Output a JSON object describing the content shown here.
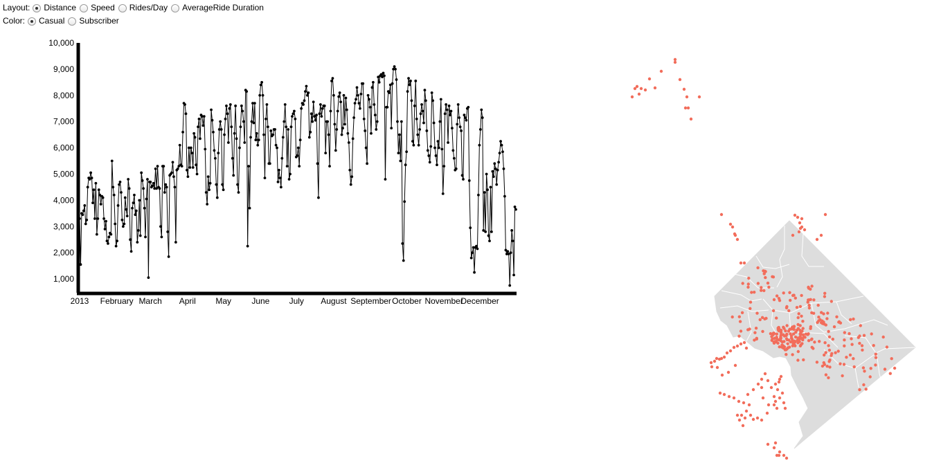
{
  "controls": {
    "layout": {
      "label": "Layout:",
      "options": [
        "Distance",
        "Speed",
        "Rides/Day",
        "AverageRide Duration"
      ],
      "selected": 0
    },
    "color": {
      "label": "Color:",
      "options": [
        "Casual",
        "Subscriber"
      ],
      "selected": 0
    }
  },
  "chart_data": {
    "type": "line",
    "title": "",
    "xlabel": "",
    "ylabel": "",
    "x_ticks": [
      "2013",
      "February",
      "March",
      "April",
      "May",
      "June",
      "July",
      "August",
      "September",
      "October",
      "November",
      "December"
    ],
    "y_ticks": [
      "1,000",
      "2,000",
      "3,000",
      "4,000",
      "5,000",
      "6,000",
      "7,000",
      "8,000",
      "9,000",
      "10,000"
    ],
    "ylim": [
      500,
      10000
    ],
    "xlim": [
      "2013-01-01",
      "2013-12-31"
    ],
    "line_color": "#000000",
    "series": [
      {
        "values": [
          3300,
          1550,
          3500,
          3450,
          3600,
          3800,
          3100,
          3250,
          4500,
          4850,
          4800,
          5050,
          4850,
          3900,
          4400,
          3300,
          4650,
          2700,
          3300,
          4400,
          4200,
          3850,
          4150,
          4100,
          3300,
          2900,
          3200,
          2450,
          2350,
          2600,
          2750,
          2700,
          5500,
          4500,
          4200,
          3100,
          2250,
          2450,
          3800,
          4600,
          4700,
          4300,
          3250,
          3000,
          3100,
          4100,
          3650,
          3400,
          4800,
          4450,
          2500,
          2050,
          3700,
          3900,
          4200,
          3450,
          3600,
          2400,
          2850,
          4000,
          2650,
          5050,
          4750,
          4450,
          3700,
          2600,
          4050,
          4800,
          1050,
          4700,
          4700,
          4500,
          4550,
          4650,
          4450,
          5200,
          4450,
          5300,
          4500,
          4450,
          3000,
          2600,
          5300,
          5300,
          4300,
          4600,
          4500,
          2800,
          1850,
          4950,
          5000,
          5050,
          5450,
          4900,
          4500,
          2400,
          5150,
          5200,
          5300,
          6100,
          5350,
          5300,
          6600,
          7700,
          7650,
          7300,
          5150,
          4900,
          6000,
          5250,
          6000,
          5800,
          5250,
          6550,
          6400,
          5350,
          5000,
          6800,
          7100,
          6350,
          7250,
          7200,
          6850,
          7200,
          5950,
          4300,
          3850,
          4900,
          4400,
          4650,
          7450,
          7050,
          6600,
          5900,
          5600,
          4600,
          4100,
          5800,
          6700,
          7000,
          6700,
          4600,
          4400,
          6500,
          7100,
          7600,
          7300,
          6200,
          7500,
          7650,
          6800,
          5600,
          4950,
          6550,
          7600,
          6350,
          4600,
          4300,
          6000,
          6800,
          7600,
          7400,
          7000,
          6200,
          8200,
          8150,
          2250,
          5300,
          3700,
          6400,
          7000,
          7700,
          6950,
          7700,
          6300,
          6550,
          6100,
          6300,
          8000,
          8400,
          8500,
          8000,
          6500,
          4850,
          7100,
          7650,
          6800,
          5400,
          5400,
          6650,
          6450,
          6500,
          6700,
          6700,
          6100,
          6000,
          4700,
          5150,
          4850,
          4500,
          5600,
          6400,
          7000,
          7650,
          6800,
          5300,
          6700,
          4800,
          5000,
          6800,
          7200,
          7300,
          7400,
          7100,
          5650,
          5700,
          6000,
          5300,
          6300,
          7500,
          7700,
          7650,
          7800,
          8150,
          8350,
          8000,
          8100,
          6400,
          6600,
          7300,
          7000,
          7750,
          7200,
          7050,
          7250,
          5400,
          4100,
          7300,
          7650,
          7200,
          7500,
          7600,
          7600,
          5800,
          7000,
          7000,
          6500,
          5300,
          7400,
          8550,
          8650,
          8000,
          6900,
          5900,
          6700,
          7400,
          7950,
          8100,
          7750,
          6500,
          6750,
          8000,
          6900,
          7900,
          7450,
          6550,
          6200,
          5150,
          4600,
          4900,
          6350,
          7150,
          7700,
          7850,
          8300,
          8000,
          7700,
          7500,
          8050,
          8450,
          8450,
          7100,
          6650,
          6000,
          5400,
          8000,
          7850,
          7550,
          6550,
          8300,
          8500,
          7650,
          7250,
          6700,
          7000,
          8700,
          8500,
          8750,
          8800,
          8700,
          8850,
          8750,
          4800,
          7550,
          7550,
          8150,
          8100,
          8400,
          6750,
          8450,
          9000,
          9100,
          9000,
          8600,
          7000,
          5800,
          6500,
          5500,
          7000,
          2350,
          1700,
          3950,
          5350,
          5850,
          8150,
          8650,
          8400,
          8550,
          7800,
          6250,
          6100,
          7600,
          8550,
          7100,
          6500,
          6100,
          6700,
          7300,
          7650,
          7400,
          6950,
          8200,
          7800,
          6650,
          5900,
          5700,
          5450,
          6050,
          8100,
          7800,
          6950,
          6000,
          5700,
          5350,
          6250,
          6000,
          7000,
          7850,
          5950,
          4250,
          5300,
          7300,
          7650,
          7450,
          6200,
          7600,
          7250,
          7400,
          6750,
          5900,
          5600,
          5150,
          5200,
          6900,
          7650,
          7150,
          6800,
          6650,
          4950,
          4800,
          7250,
          7150,
          7050,
          7500,
          7550,
          4750,
          2950,
          1800,
          2000,
          2200,
          1250,
          2200,
          2250,
          2150,
          4200,
          6100,
          6700,
          7450,
          7150,
          2850,
          4300,
          2800,
          5000,
          4400,
          2650,
          2450,
          4500,
          2800,
          5100,
          4900,
          5400,
          5200,
          4600,
          5150,
          5450,
          5800,
          6250,
          6100,
          5850,
          5200,
          4150,
          2100,
          1950,
          2050,
          1950,
          750,
          2000,
          2850,
          2450,
          1150,
          3750,
          3650
        ]
      }
    ]
  },
  "map": {
    "land_color": "#dddddd",
    "border_color": "#ffffff",
    "dot_color": "#f26d5b"
  }
}
